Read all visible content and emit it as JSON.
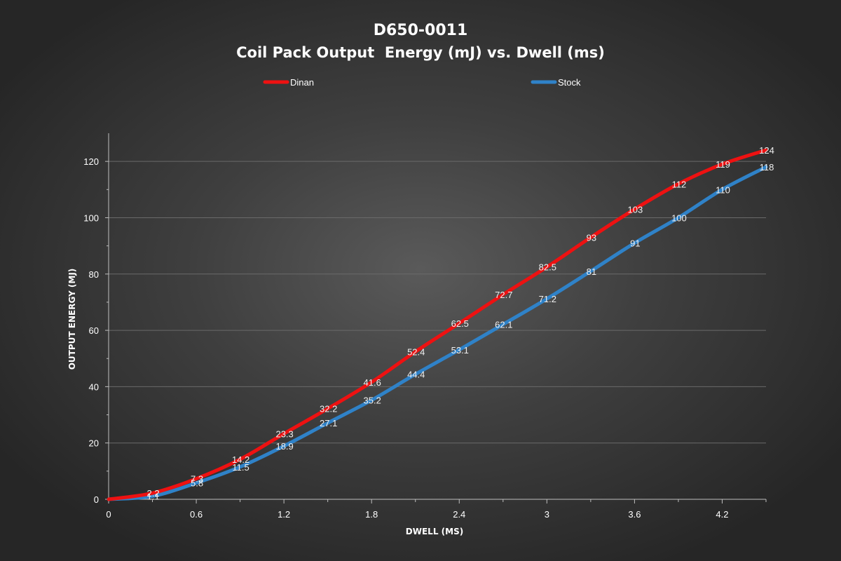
{
  "chart_data": {
    "type": "line",
    "title": "D650-0011",
    "subtitle": "Coil Pack Output  Energy (mJ) vs. Dwell (ms)",
    "xlabel": "DWELL (MS)",
    "ylabel": "OUTPUT ENERGY (MJ)",
    "xlim": [
      0,
      4.5
    ],
    "ylim": [
      0,
      130
    ],
    "x_ticks": [
      "0",
      "0.6",
      "1.2",
      "1.8",
      "2.4",
      "3",
      "3.6",
      "4.2"
    ],
    "x_tick_values": [
      0,
      0.6,
      1.2,
      1.8,
      2.4,
      3,
      3.6,
      4.2
    ],
    "y_ticks": [
      "0",
      "20",
      "40",
      "60",
      "80",
      "100",
      "120"
    ],
    "y_tick_values": [
      0,
      20,
      40,
      60,
      80,
      100,
      120
    ],
    "grid": "horizontal",
    "legend_position": "top",
    "series": [
      {
        "name": "Dinan",
        "color": "#ee1111",
        "x": [
          0,
          0.3,
          0.6,
          0.9,
          1.2,
          1.5,
          1.8,
          2.1,
          2.4,
          2.7,
          3.0,
          3.3,
          3.6,
          3.9,
          4.2,
          4.5
        ],
        "values": [
          0,
          2.2,
          7.3,
          14.2,
          23.3,
          32.2,
          41.6,
          52.4,
          62.5,
          72.7,
          82.5,
          93,
          103,
          112,
          119,
          124
        ],
        "labels": [
          "",
          "2.2",
          "7.3",
          "14.2",
          "23.3",
          "32.2",
          "41.6",
          "52.4",
          "62.5",
          "72.7",
          "82.5",
          "93",
          "103",
          "112",
          "119",
          "124"
        ]
      },
      {
        "name": "Stock",
        "color": "#2f82c8",
        "x": [
          0,
          0.3,
          0.6,
          0.9,
          1.2,
          1.5,
          1.8,
          2.1,
          2.4,
          2.7,
          3.0,
          3.3,
          3.6,
          3.9,
          4.2,
          4.5
        ],
        "values": [
          0,
          1.1,
          5.8,
          11.5,
          18.9,
          27.1,
          35.2,
          44.4,
          53.1,
          62.1,
          71.2,
          81,
          91,
          100,
          110,
          118
        ],
        "labels": [
          "",
          "1.1",
          "5.8",
          "11.5",
          "18.9",
          "27.1",
          "35.2",
          "44.4",
          "53.1",
          "62.1",
          "71.2",
          "81",
          "91",
          "100",
          "110",
          "118"
        ]
      }
    ]
  }
}
